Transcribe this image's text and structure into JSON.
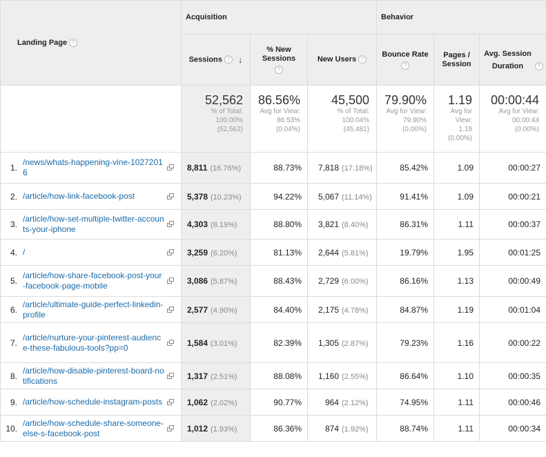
{
  "header": {
    "landing_page": "Landing Page",
    "acquisition": "Acquisition",
    "behavior": "Behavior",
    "sessions": "Sessions",
    "new_sessions": "% New Sessions",
    "new_users": "New Users",
    "bounce_rate": "Bounce Rate",
    "pages_session": "Pages / Session",
    "avg_duration": "Avg. Session Duration",
    "help_glyph": "?",
    "sort_arrow": "↓"
  },
  "totals": {
    "sessions": {
      "value": "52,562",
      "l1": "% of Total:",
      "l2": "100.00%",
      "l3": "(52,562)"
    },
    "new_sessions": {
      "value": "86.56%",
      "l1": "Avg for View:",
      "l2": "86.53%",
      "l3": "(0.04%)"
    },
    "new_users": {
      "value": "45,500",
      "l1": "% of Total:",
      "l2": "100.04%",
      "l3": "(45,481)"
    },
    "bounce_rate": {
      "value": "79.90%",
      "l1": "Avg for View:",
      "l2": "79.90%",
      "l3": "(0.00%)"
    },
    "pages_session": {
      "value": "1.19",
      "l1": "Avg for",
      "l2": "View:",
      "l3": "1.19",
      "l4": "(0.00%)"
    },
    "avg_duration": {
      "value": "00:00:44",
      "l1": "Avg for View:",
      "l2": "00:00:44",
      "l3": "(0.00%)"
    }
  },
  "rows": [
    {
      "num": "1.",
      "page": "/news/whats-happening-vine-10272016",
      "sessions": "8,811",
      "sessions_pct": "(16.76%)",
      "new_sessions": "88.73%",
      "new_users": "7,818",
      "new_users_pct": "(17.18%)",
      "bounce": "85.42%",
      "pages": "1.09",
      "duration": "00:00:27"
    },
    {
      "num": "2.",
      "page": "/article/how-link-facebook-post",
      "sessions": "5,378",
      "sessions_pct": "(10.23%)",
      "new_sessions": "94.22%",
      "new_users": "5,067",
      "new_users_pct": "(11.14%)",
      "bounce": "91.41%",
      "pages": "1.09",
      "duration": "00:00:21"
    },
    {
      "num": "3.",
      "page": "/article/how-set-multiple-twitter-accounts-your-iphone",
      "sessions": "4,303",
      "sessions_pct": "(8.19%)",
      "new_sessions": "88.80%",
      "new_users": "3,821",
      "new_users_pct": "(8.40%)",
      "bounce": "86.31%",
      "pages": "1.11",
      "duration": "00:00:37"
    },
    {
      "num": "4.",
      "page": "/",
      "sessions": "3,259",
      "sessions_pct": "(6.20%)",
      "new_sessions": "81.13%",
      "new_users": "2,644",
      "new_users_pct": "(5.81%)",
      "bounce": "19.79%",
      "pages": "1.95",
      "duration": "00:01:25"
    },
    {
      "num": "5.",
      "page": "/article/how-share-facebook-post-your-facebook-page-mobile",
      "sessions": "3,086",
      "sessions_pct": "(5.87%)",
      "new_sessions": "88.43%",
      "new_users": "2,729",
      "new_users_pct": "(6.00%)",
      "bounce": "86.16%",
      "pages": "1.13",
      "duration": "00:00:49"
    },
    {
      "num": "6.",
      "page": "/article/ultimate-guide-perfect-linkedin-profile",
      "sessions": "2,577",
      "sessions_pct": "(4.90%)",
      "new_sessions": "84.40%",
      "new_users": "2,175",
      "new_users_pct": "(4.78%)",
      "bounce": "84.87%",
      "pages": "1.19",
      "duration": "00:01:04"
    },
    {
      "num": "7.",
      "page": "/article/nurture-your-pinterest-audience-these-fabulous-tools?pp=0",
      "sessions": "1,584",
      "sessions_pct": "(3.01%)",
      "new_sessions": "82.39%",
      "new_users": "1,305",
      "new_users_pct": "(2.87%)",
      "bounce": "79.23%",
      "pages": "1.16",
      "duration": "00:00:22"
    },
    {
      "num": "8.",
      "page": "/article/how-disable-pinterest-board-notifications",
      "sessions": "1,317",
      "sessions_pct": "(2.51%)",
      "new_sessions": "88.08%",
      "new_users": "1,160",
      "new_users_pct": "(2.55%)",
      "bounce": "86.64%",
      "pages": "1.10",
      "duration": "00:00:35"
    },
    {
      "num": "9.",
      "page": "/article/how-schedule-instagram-posts",
      "sessions": "1,062",
      "sessions_pct": "(2.02%)",
      "new_sessions": "90.77%",
      "new_users": "964",
      "new_users_pct": "(2.12%)",
      "bounce": "74.95%",
      "pages": "1.11",
      "duration": "00:00:46"
    },
    {
      "num": "10.",
      "page": "/article/how-schedule-share-someone-else-s-facebook-post",
      "sessions": "1,012",
      "sessions_pct": "(1.93%)",
      "new_sessions": "86.36%",
      "new_users": "874",
      "new_users_pct": "(1.92%)",
      "bounce": "88.74%",
      "pages": "1.11",
      "duration": "00:00:34"
    }
  ]
}
